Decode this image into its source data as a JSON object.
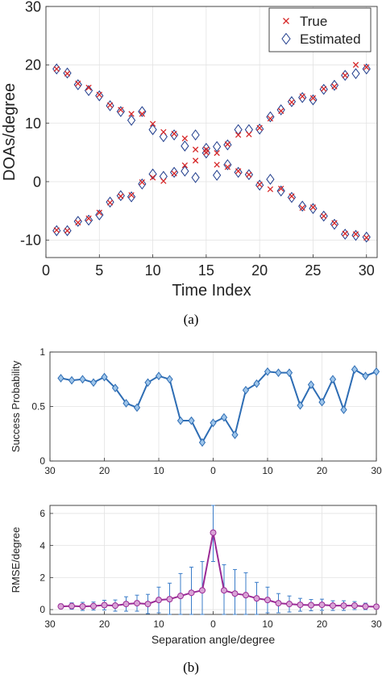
{
  "captions": {
    "a": "(a)",
    "b": "(b)"
  },
  "chart_data": [
    {
      "type": "scatter",
      "xlabel": "Time Index",
      "ylabel": "DOAs/degree",
      "xlim": [
        0,
        31
      ],
      "ylim": [
        -13,
        30
      ],
      "xticks": [
        0,
        5,
        10,
        15,
        20,
        25,
        30
      ],
      "yticks": [
        -10,
        0,
        10,
        20,
        30
      ],
      "grid": true,
      "legend_position": "top-right",
      "series": [
        {
          "name": "True",
          "marker": "x",
          "color": "#d62728",
          "x": [
            1,
            2,
            3,
            4,
            5,
            6,
            7,
            8,
            9,
            10,
            11,
            12,
            13,
            14,
            15,
            16,
            17,
            18,
            19,
            20,
            21,
            22,
            23,
            24,
            25,
            26,
            27,
            28,
            29,
            30,
            1,
            2,
            3,
            4,
            5,
            6,
            7,
            8,
            9,
            10,
            11,
            12,
            13,
            14,
            15,
            16,
            17,
            18,
            19,
            20,
            21,
            22,
            23,
            24,
            25,
            26,
            27,
            28,
            29,
            30
          ],
          "y": [
            19.3,
            18.5,
            16.8,
            16.1,
            14.9,
            13.1,
            12.3,
            11.6,
            11.6,
            9.9,
            8.5,
            8.2,
            7.4,
            5.5,
            5.0,
            4.9,
            6.4,
            8.0,
            8.1,
            9.2,
            10.8,
            12.1,
            13.6,
            14.6,
            14.3,
            15.9,
            16.3,
            18.2,
            20.0,
            19.6,
            -8.3,
            -8.4,
            -7.0,
            -6.3,
            -5.3,
            -3.6,
            -2.5,
            -2.3,
            -0.1,
            0.7,
            0.1,
            1.4,
            2.8,
            3.6,
            5.5,
            2.9,
            2.5,
            1.8,
            1.2,
            -0.5,
            -1.3,
            -1.2,
            -2.5,
            -4.5,
            -4.4,
            -5.9,
            -7.1,
            -8.9,
            -9.0,
            -9.6
          ]
        },
        {
          "name": "Estimated",
          "marker": "diamond",
          "color": "#1f3c8c",
          "x": [
            1,
            2,
            3,
            4,
            5,
            6,
            7,
            8,
            9,
            10,
            11,
            12,
            13,
            14,
            15,
            16,
            17,
            18,
            19,
            20,
            21,
            22,
            23,
            24,
            25,
            26,
            27,
            28,
            29,
            30,
            1,
            2,
            3,
            4,
            5,
            6,
            7,
            8,
            9,
            10,
            11,
            12,
            13,
            14,
            15,
            16,
            17,
            18,
            19,
            20,
            21,
            22,
            23,
            24,
            25,
            26,
            27,
            28,
            29,
            30
          ],
          "y": [
            19.3,
            18.6,
            16.6,
            15.6,
            14.7,
            13.0,
            12.0,
            10.5,
            12.0,
            8.9,
            7.7,
            8.0,
            6.1,
            8.0,
            5.7,
            6.0,
            6.3,
            8.9,
            8.9,
            9.0,
            11.1,
            12.3,
            13.7,
            14.4,
            14.0,
            15.8,
            16.5,
            18.2,
            18.5,
            19.3,
            -8.4,
            -8.4,
            -6.8,
            -6.6,
            -5.7,
            -3.5,
            -2.4,
            -2.6,
            -0.4,
            1.3,
            0.9,
            1.6,
            1.8,
            0.7,
            4.9,
            1.1,
            2.9,
            1.6,
            1.2,
            -0.6,
            0.4,
            -1.6,
            -2.7,
            -4.2,
            -4.6,
            -5.9,
            -7.3,
            -9.0,
            -9.2,
            -9.5
          ]
        }
      ]
    },
    {
      "type": "line",
      "xlabel": "",
      "ylabel": "Success Probability",
      "xlim": [
        -30,
        30
      ],
      "ylim": [
        0,
        1
      ],
      "xticks": [
        -30,
        -20,
        -10,
        0,
        10,
        20,
        30
      ],
      "xticklabels": [
        "30",
        "20",
        "10",
        "0",
        "10",
        "20",
        "30"
      ],
      "yticks": [
        0,
        0.5,
        1
      ],
      "grid": true,
      "color": "#2e6db4",
      "marker": "diamond",
      "x": [
        -28,
        -26,
        -24,
        -22,
        -20,
        -18,
        -16,
        -14,
        -12,
        -10,
        -8,
        -6,
        -4,
        -2,
        0,
        2,
        4,
        6,
        8,
        10,
        12,
        14,
        16,
        18,
        20,
        22,
        24,
        26,
        28,
        30
      ],
      "values": [
        0.76,
        0.74,
        0.75,
        0.72,
        0.77,
        0.67,
        0.53,
        0.49,
        0.72,
        0.78,
        0.75,
        0.37,
        0.37,
        0.17,
        0.35,
        0.4,
        0.24,
        0.65,
        0.71,
        0.82,
        0.81,
        0.81,
        0.51,
        0.7,
        0.54,
        0.75,
        0.47,
        0.84,
        0.78,
        0.82
      ]
    },
    {
      "type": "line",
      "xlabel": "Separation angle/degree",
      "ylabel": "RMSE/degree",
      "xlim": [
        -30,
        30
      ],
      "ylim": [
        -0.3,
        6.5
      ],
      "xticks": [
        -30,
        -20,
        -10,
        0,
        10,
        20,
        30
      ],
      "xticklabels": [
        "30",
        "20",
        "10",
        "0",
        "10",
        "20",
        "30"
      ],
      "yticks": [
        0,
        2,
        4,
        6
      ],
      "grid": true,
      "color": "#9a2a95",
      "error_color": "#3b7dc9",
      "marker": "circle",
      "x": [
        -28,
        -26,
        -24,
        -22,
        -20,
        -18,
        -16,
        -14,
        -12,
        -10,
        -8,
        -6,
        -4,
        -2,
        0,
        2,
        4,
        6,
        8,
        10,
        12,
        14,
        16,
        18,
        20,
        22,
        24,
        26,
        28,
        30
      ],
      "values": [
        0.2,
        0.22,
        0.2,
        0.22,
        0.28,
        0.25,
        0.35,
        0.4,
        0.35,
        0.6,
        0.65,
        0.85,
        1.05,
        1.2,
        4.8,
        1.2,
        1.0,
        0.9,
        0.7,
        0.6,
        0.4,
        0.35,
        0.3,
        0.28,
        0.3,
        0.25,
        0.25,
        0.25,
        0.2,
        0.18
      ],
      "errors": [
        0.15,
        0.2,
        0.25,
        0.25,
        0.3,
        0.35,
        0.45,
        0.5,
        0.6,
        0.8,
        1.0,
        1.4,
        1.6,
        1.8,
        1.8,
        1.6,
        1.5,
        1.4,
        1.0,
        0.8,
        0.6,
        0.5,
        0.4,
        0.35,
        0.35,
        0.3,
        0.3,
        0.25,
        0.2,
        0.15
      ]
    }
  ]
}
